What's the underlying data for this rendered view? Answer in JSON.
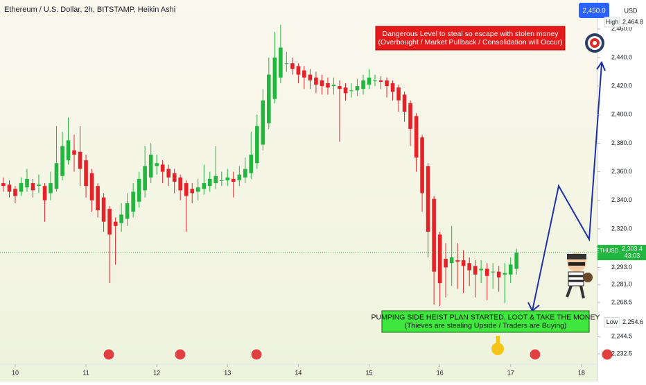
{
  "chart_data": {
    "type": "candlestick",
    "title": "Ethereum / U.S. Dollar, 2h, BITSTAMP, Heikin Ashi",
    "currency": "USD",
    "up_color": "#22b53f",
    "down_color": "#e3222a",
    "x": [
      9.833,
      9.917,
      10,
      10.083,
      10.167,
      10.25,
      10.333,
      10.417,
      10.5,
      10.583,
      10.667,
      10.75,
      10.833,
      10.917,
      11,
      11.083,
      11.167,
      11.25,
      11.333,
      11.417,
      11.5,
      11.583,
      11.667,
      11.75,
      11.833,
      11.917,
      12,
      12.083,
      12.167,
      12.25,
      12.333,
      12.417,
      12.5,
      12.583,
      12.667,
      12.75,
      12.833,
      12.917,
      13,
      13.083,
      13.167,
      13.25,
      13.333,
      13.417,
      13.5,
      13.583,
      13.667,
      13.75,
      13.833,
      13.917,
      14,
      14.083,
      14.167,
      14.25,
      14.333,
      14.417,
      14.5,
      14.583,
      14.667,
      14.75,
      14.833,
      14.917,
      15,
      15.083,
      15.167,
      15.25,
      15.333,
      15.417,
      15.5,
      15.583,
      15.667,
      15.75,
      15.833,
      15.917,
      16,
      16.083,
      16.167,
      16.25,
      16.333,
      16.417,
      16.5,
      16.583,
      16.667,
      16.75,
      16.833,
      16.917,
      17,
      17.083
    ],
    "open": [
      2352,
      2351,
      2348,
      2346,
      2349,
      2352,
      2350,
      2350,
      2345,
      2348,
      2357,
      2368,
      2375,
      2374,
      2368,
      2359,
      2350,
      2342,
      2334,
      2325,
      2324,
      2327,
      2332,
      2339,
      2347,
      2356,
      2364,
      2365,
      2362,
      2359,
      2356,
      2352,
      2348,
      2346,
      2348,
      2350,
      2352,
      2354,
      2354,
      2355,
      2354,
      2356,
      2359,
      2366,
      2379,
      2394,
      2411,
      2426,
      2436,
      2436,
      2434,
      2431,
      2428,
      2426,
      2424,
      2422,
      2420,
      2420,
      2419,
      2417,
      2417,
      2418,
      2421,
      2424,
      2424,
      2424,
      2422,
      2419,
      2414,
      2408,
      2399,
      2384,
      2364,
      2341,
      2316,
      2299,
      2296,
      2298,
      2298,
      2296,
      2294,
      2291,
      2292,
      2290,
      2290,
      2288,
      2288,
      2292
    ],
    "high": [
      2356,
      2354,
      2350,
      2356,
      2362,
      2355,
      2358,
      2352,
      2360,
      2392,
      2388,
      2398,
      2386,
      2392,
      2372,
      2362,
      2352,
      2345,
      2336,
      2328,
      2338,
      2345,
      2352,
      2360,
      2378,
      2380,
      2372,
      2368,
      2365,
      2362,
      2358,
      2354,
      2352,
      2355,
      2365,
      2360,
      2378,
      2360,
      2362,
      2360,
      2364,
      2370,
      2388,
      2400,
      2418,
      2440,
      2458,
      2463,
      2444,
      2440,
      2436,
      2434,
      2432,
      2430,
      2428,
      2426,
      2426,
      2424,
      2422,
      2422,
      2425,
      2428,
      2432,
      2428,
      2427,
      2426,
      2424,
      2421,
      2416,
      2410,
      2401,
      2386,
      2366,
      2343,
      2318,
      2310,
      2322,
      2310,
      2305,
      2300,
      2298,
      2298,
      2296,
      2296,
      2294,
      2296,
      2300,
      2306
    ],
    "low": [
      2346,
      2342,
      2338,
      2343,
      2346,
      2342,
      2345,
      2325,
      2340,
      2346,
      2354,
      2365,
      2360,
      2350,
      2342,
      2332,
      2328,
      2318,
      2282,
      2295,
      2318,
      2322,
      2328,
      2335,
      2342,
      2352,
      2358,
      2352,
      2350,
      2345,
      2340,
      2318,
      2338,
      2340,
      2344,
      2346,
      2348,
      2350,
      2350,
      2342,
      2350,
      2352,
      2355,
      2362,
      2375,
      2390,
      2408,
      2422,
      2430,
      2428,
      2422,
      2418,
      2418,
      2415,
      2414,
      2414,
      2414,
      2381,
      2410,
      2412,
      2413,
      2414,
      2418,
      2420,
      2418,
      2412,
      2410,
      2402,
      2395,
      2378,
      2360,
      2332,
      2300,
      2267,
      2266,
      2272,
      2280,
      2278,
      2275,
      2280,
      2272,
      2282,
      2270,
      2278,
      2276,
      2268,
      2282,
      2288
    ],
    "close": [
      2350,
      2346,
      2343,
      2352,
      2355,
      2347,
      2351,
      2340,
      2352,
      2366,
      2378,
      2382,
      2372,
      2362,
      2350,
      2340,
      2333,
      2325,
      2316,
      2322,
      2330,
      2338,
      2346,
      2355,
      2364,
      2372,
      2366,
      2360,
      2356,
      2353,
      2347,
      2343,
      2345,
      2349,
      2352,
      2355,
      2357,
      2354,
      2356,
      2353,
      2358,
      2362,
      2372,
      2392,
      2410,
      2428,
      2440,
      2447,
      2436,
      2432,
      2428,
      2426,
      2424,
      2421,
      2420,
      2419,
      2421,
      2418,
      2415,
      2417,
      2420,
      2424,
      2426,
      2424,
      2423,
      2420,
      2416,
      2410,
      2402,
      2390,
      2370,
      2345,
      2318,
      2290,
      2282,
      2293,
      2300,
      2297,
      2294,
      2291,
      2288,
      2292,
      2287,
      2290,
      2286,
      2289,
      2295,
      2303.4
    ],
    "xlim": [
      9.785,
      18.227
    ],
    "xticks": [
      10,
      11,
      12,
      13,
      14,
      15,
      16,
      17,
      18
    ],
    "ylim": [
      2225.2,
      2480.3
    ],
    "yticks": [
      {
        "value": 2460,
        "label": "2,460.0"
      },
      {
        "value": 2440,
        "label": "2,440.0"
      },
      {
        "value": 2420,
        "label": "2,420.0"
      },
      {
        "value": 2400,
        "label": "2,400.0"
      },
      {
        "value": 2380,
        "label": "2,380.0"
      },
      {
        "value": 2360,
        "label": "2,360.0"
      },
      {
        "value": 2340,
        "label": "2,340.0"
      },
      {
        "value": 2320,
        "label": "2,320.0"
      },
      {
        "value": 2293,
        "label": "2,293.0"
      },
      {
        "value": 2281,
        "label": "2,281.0"
      },
      {
        "value": 2268.5,
        "label": "2,268.5"
      },
      {
        "value": 2244.5,
        "label": "2,244.5"
      },
      {
        "value": 2232.5,
        "label": "2,232.5"
      }
    ],
    "high_marker": {
      "name": "High",
      "value": 2464.8,
      "label": "2,464.8"
    },
    "low_marker": {
      "name": "Low",
      "value": 2254.6,
      "label": "2,254.6"
    },
    "last_price": {
      "symbol": "ETHUSD",
      "value": 2303.4,
      "label": "2,303.4",
      "countdown": "43:03"
    },
    "target_tag": "2,450.0",
    "annotations": [
      {
        "lines": [
          "Dangerous Level to steal so escape with stolen money",
          "(Overbought / Market Pullback / Consolidation will Occur)"
        ],
        "color": "#e31b1b"
      },
      {
        "lines": [
          "PUMPING SIDE HEIST PLAN STARTED, LOOT & TAKE THE MONEY",
          "(Thieves are stealing Upside / Traders are Buying)"
        ],
        "color": "#3ee63e"
      }
    ]
  }
}
